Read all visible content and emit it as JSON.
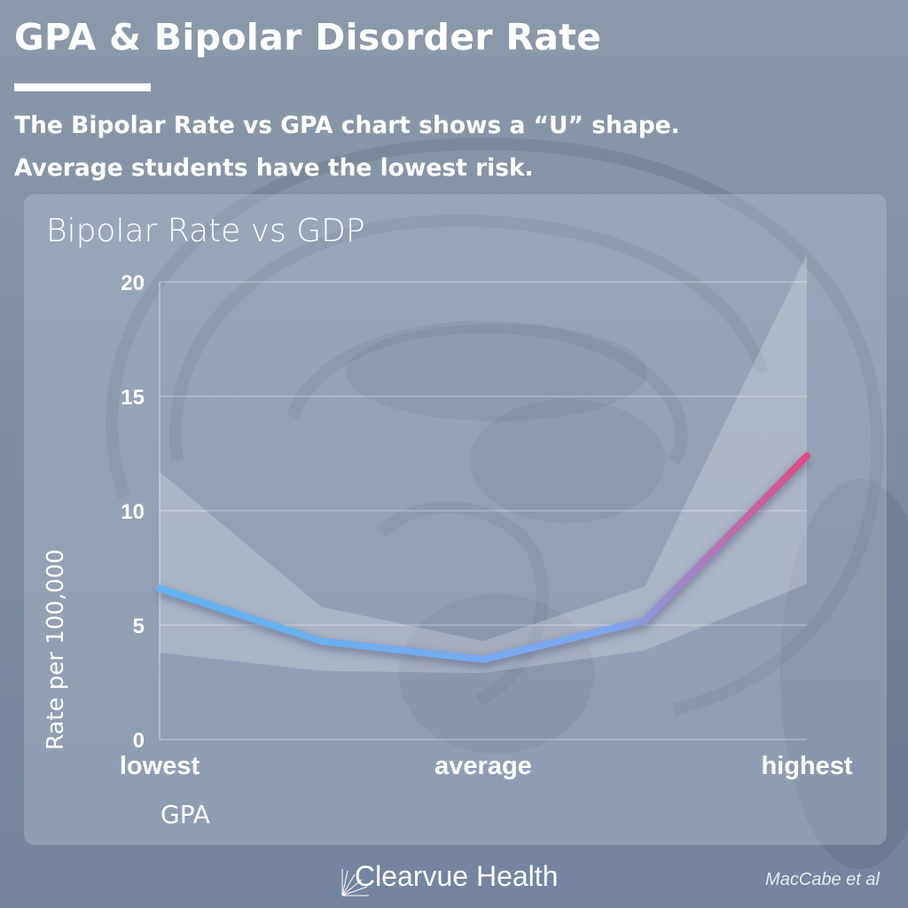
{
  "header": {
    "title": "GPA & Bipolar Disorder Rate",
    "subtitle_line1": "The Bipolar Rate vs GPA chart shows a “U” shape.",
    "subtitle_line2": "Average students have the lowest risk."
  },
  "chart_data": {
    "type": "line",
    "title": "Bipolar Rate vs GDP",
    "xlabel": "GPA",
    "ylabel": "Rate per 100,000",
    "categories": [
      "lowest",
      "",
      "average",
      "",
      "highest"
    ],
    "ylim": [
      0,
      20
    ],
    "yticks": [
      0,
      5,
      10,
      15,
      20
    ],
    "series": [
      {
        "values": [
          6.6,
          4.3,
          3.5,
          5.2,
          12.4
        ],
        "ci_lower": [
          3.8,
          3.0,
          2.9,
          3.9,
          6.8
        ],
        "ci_upper": [
          11.7,
          5.8,
          4.3,
          6.7,
          21.2
        ]
      }
    ],
    "grid": true,
    "line_gradient": [
      "#62b4f2",
      "#e04a83"
    ]
  },
  "footer": {
    "brand": "Clearvue Health",
    "source": "MacCabe et al"
  }
}
